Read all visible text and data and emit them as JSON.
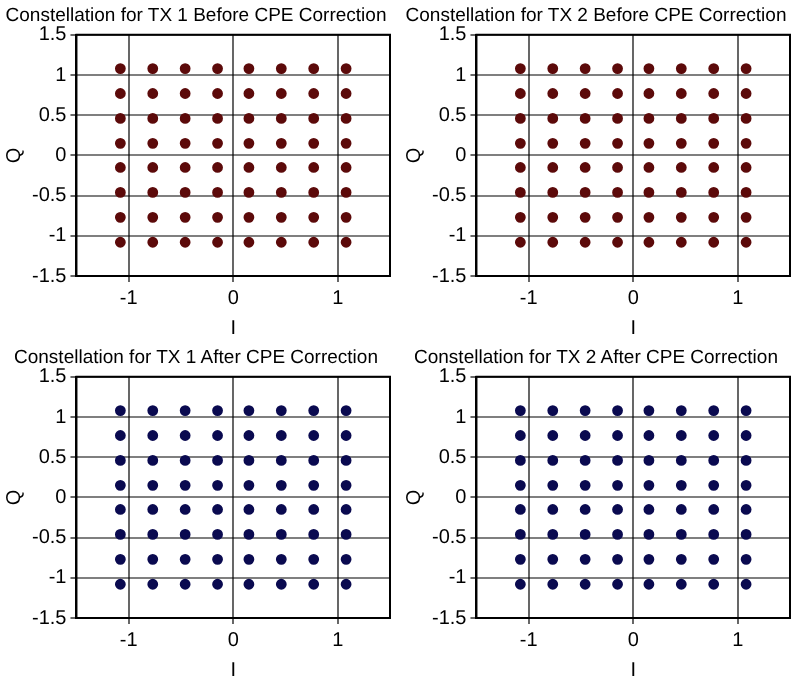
{
  "chart_data": [
    {
      "type": "scatter",
      "title": "Constellation for TX 1 Before CPE Correction",
      "xlabel": "I",
      "ylabel": "Q",
      "xlim": [
        -1.5,
        1.5
      ],
      "xticks": [
        -1,
        0,
        1
      ],
      "ylim": [
        -1.5,
        1.5
      ],
      "yticks": [
        -1.5,
        -1,
        -0.5,
        0,
        0.5,
        1,
        1.5
      ],
      "grid": true,
      "marker": "circle",
      "series": [
        {
          "color": "#5c0a0a",
          "x": [
            -1.08,
            -1.08,
            -1.08,
            -1.08,
            -1.08,
            -1.08,
            -1.08,
            -1.08,
            -0.77,
            -0.77,
            -0.77,
            -0.77,
            -0.77,
            -0.77,
            -0.77,
            -0.77,
            -0.46,
            -0.46,
            -0.46,
            -0.46,
            -0.46,
            -0.46,
            -0.46,
            -0.46,
            -0.15,
            -0.15,
            -0.15,
            -0.15,
            -0.15,
            -0.15,
            -0.15,
            -0.15,
            0.15,
            0.15,
            0.15,
            0.15,
            0.15,
            0.15,
            0.15,
            0.15,
            0.46,
            0.46,
            0.46,
            0.46,
            0.46,
            0.46,
            0.46,
            0.46,
            0.77,
            0.77,
            0.77,
            0.77,
            0.77,
            0.77,
            0.77,
            0.77,
            1.08,
            1.08,
            1.08,
            1.08,
            1.08,
            1.08,
            1.08,
            1.08
          ],
          "values": [
            -1.08,
            -0.77,
            -0.46,
            -0.15,
            0.15,
            0.46,
            0.77,
            1.08,
            -1.08,
            -0.77,
            -0.46,
            -0.15,
            0.15,
            0.46,
            0.77,
            1.08,
            -1.08,
            -0.77,
            -0.46,
            -0.15,
            0.15,
            0.46,
            0.77,
            1.08,
            -1.08,
            -0.77,
            -0.46,
            -0.15,
            0.15,
            0.46,
            0.77,
            1.08,
            -1.08,
            -0.77,
            -0.46,
            -0.15,
            0.15,
            0.46,
            0.77,
            1.08,
            -1.08,
            -0.77,
            -0.46,
            -0.15,
            0.15,
            0.46,
            0.77,
            1.08,
            -1.08,
            -0.77,
            -0.46,
            -0.15,
            0.15,
            0.46,
            0.77,
            1.08,
            -1.08,
            -0.77,
            -0.46,
            -0.15,
            0.15,
            0.46,
            0.77,
            1.08
          ]
        }
      ]
    },
    {
      "type": "scatter",
      "title": "Constellation for TX 2 Before CPE Correction",
      "xlabel": "I",
      "ylabel": "Q",
      "xlim": [
        -1.5,
        1.5
      ],
      "xticks": [
        -1,
        0,
        1
      ],
      "ylim": [
        -1.5,
        1.5
      ],
      "yticks": [
        -1.5,
        -1,
        -0.5,
        0,
        0.5,
        1,
        1.5
      ],
      "grid": true,
      "marker": "circle",
      "series": [
        {
          "color": "#5c0a0a",
          "x": [
            -1.08,
            -1.08,
            -1.08,
            -1.08,
            -1.08,
            -1.08,
            -1.08,
            -1.08,
            -0.77,
            -0.77,
            -0.77,
            -0.77,
            -0.77,
            -0.77,
            -0.77,
            -0.77,
            -0.46,
            -0.46,
            -0.46,
            -0.46,
            -0.46,
            -0.46,
            -0.46,
            -0.46,
            -0.15,
            -0.15,
            -0.15,
            -0.15,
            -0.15,
            -0.15,
            -0.15,
            -0.15,
            0.15,
            0.15,
            0.15,
            0.15,
            0.15,
            0.15,
            0.15,
            0.15,
            0.46,
            0.46,
            0.46,
            0.46,
            0.46,
            0.46,
            0.46,
            0.46,
            0.77,
            0.77,
            0.77,
            0.77,
            0.77,
            0.77,
            0.77,
            0.77,
            1.08,
            1.08,
            1.08,
            1.08,
            1.08,
            1.08,
            1.08,
            1.08
          ],
          "values": [
            -1.08,
            -0.77,
            -0.46,
            -0.15,
            0.15,
            0.46,
            0.77,
            1.08,
            -1.08,
            -0.77,
            -0.46,
            -0.15,
            0.15,
            0.46,
            0.77,
            1.08,
            -1.08,
            -0.77,
            -0.46,
            -0.15,
            0.15,
            0.46,
            0.77,
            1.08,
            -1.08,
            -0.77,
            -0.46,
            -0.15,
            0.15,
            0.46,
            0.77,
            1.08,
            -1.08,
            -0.77,
            -0.46,
            -0.15,
            0.15,
            0.46,
            0.77,
            1.08,
            -1.08,
            -0.77,
            -0.46,
            -0.15,
            0.15,
            0.46,
            0.77,
            1.08,
            -1.08,
            -0.77,
            -0.46,
            -0.15,
            0.15,
            0.46,
            0.77,
            1.08,
            -1.08,
            -0.77,
            -0.46,
            -0.15,
            0.15,
            0.46,
            0.77,
            1.08
          ]
        }
      ]
    },
    {
      "type": "scatter",
      "title": "Constellation for TX 1 After CPE Correction",
      "xlabel": "I",
      "ylabel": "Q",
      "xlim": [
        -1.5,
        1.5
      ],
      "xticks": [
        -1,
        0,
        1
      ],
      "ylim": [
        -1.5,
        1.5
      ],
      "yticks": [
        -1.5,
        -1,
        -0.5,
        0,
        0.5,
        1,
        1.5
      ],
      "grid": true,
      "marker": "circle",
      "series": [
        {
          "color": "#0a0a50",
          "x": [
            -1.08,
            -1.08,
            -1.08,
            -1.08,
            -1.08,
            -1.08,
            -1.08,
            -1.08,
            -0.77,
            -0.77,
            -0.77,
            -0.77,
            -0.77,
            -0.77,
            -0.77,
            -0.77,
            -0.46,
            -0.46,
            -0.46,
            -0.46,
            -0.46,
            -0.46,
            -0.46,
            -0.46,
            -0.15,
            -0.15,
            -0.15,
            -0.15,
            -0.15,
            -0.15,
            -0.15,
            -0.15,
            0.15,
            0.15,
            0.15,
            0.15,
            0.15,
            0.15,
            0.15,
            0.15,
            0.46,
            0.46,
            0.46,
            0.46,
            0.46,
            0.46,
            0.46,
            0.46,
            0.77,
            0.77,
            0.77,
            0.77,
            0.77,
            0.77,
            0.77,
            0.77,
            1.08,
            1.08,
            1.08,
            1.08,
            1.08,
            1.08,
            1.08,
            1.08
          ],
          "values": [
            -1.08,
            -0.77,
            -0.46,
            -0.15,
            0.15,
            0.46,
            0.77,
            1.08,
            -1.08,
            -0.77,
            -0.46,
            -0.15,
            0.15,
            0.46,
            0.77,
            1.08,
            -1.08,
            -0.77,
            -0.46,
            -0.15,
            0.15,
            0.46,
            0.77,
            1.08,
            -1.08,
            -0.77,
            -0.46,
            -0.15,
            0.15,
            0.46,
            0.77,
            1.08,
            -1.08,
            -0.77,
            -0.46,
            -0.15,
            0.15,
            0.46,
            0.77,
            1.08,
            -1.08,
            -0.77,
            -0.46,
            -0.15,
            0.15,
            0.46,
            0.77,
            1.08,
            -1.08,
            -0.77,
            -0.46,
            -0.15,
            0.15,
            0.46,
            0.77,
            1.08,
            -1.08,
            -0.77,
            -0.46,
            -0.15,
            0.15,
            0.46,
            0.77,
            1.08
          ]
        }
      ]
    },
    {
      "type": "scatter",
      "title": "Constellation for TX 2 After CPE Correction",
      "xlabel": "I",
      "ylabel": "Q",
      "xlim": [
        -1.5,
        1.5
      ],
      "xticks": [
        -1,
        0,
        1
      ],
      "ylim": [
        -1.5,
        1.5
      ],
      "yticks": [
        -1.5,
        -1,
        -0.5,
        0,
        0.5,
        1,
        1.5
      ],
      "grid": true,
      "marker": "circle",
      "series": [
        {
          "color": "#0a0a50",
          "x": [
            -1.08,
            -1.08,
            -1.08,
            -1.08,
            -1.08,
            -1.08,
            -1.08,
            -1.08,
            -0.77,
            -0.77,
            -0.77,
            -0.77,
            -0.77,
            -0.77,
            -0.77,
            -0.77,
            -0.46,
            -0.46,
            -0.46,
            -0.46,
            -0.46,
            -0.46,
            -0.46,
            -0.46,
            -0.15,
            -0.15,
            -0.15,
            -0.15,
            -0.15,
            -0.15,
            -0.15,
            -0.15,
            0.15,
            0.15,
            0.15,
            0.15,
            0.15,
            0.15,
            0.15,
            0.15,
            0.46,
            0.46,
            0.46,
            0.46,
            0.46,
            0.46,
            0.46,
            0.46,
            0.77,
            0.77,
            0.77,
            0.77,
            0.77,
            0.77,
            0.77,
            0.77,
            1.08,
            1.08,
            1.08,
            1.08,
            1.08,
            1.08,
            1.08,
            1.08
          ],
          "values": [
            -1.08,
            -0.77,
            -0.46,
            -0.15,
            0.15,
            0.46,
            0.77,
            1.08,
            -1.08,
            -0.77,
            -0.46,
            -0.15,
            0.15,
            0.46,
            0.77,
            1.08,
            -1.08,
            -0.77,
            -0.46,
            -0.15,
            0.15,
            0.46,
            0.77,
            1.08,
            -1.08,
            -0.77,
            -0.46,
            -0.15,
            0.15,
            0.46,
            0.77,
            1.08,
            -1.08,
            -0.77,
            -0.46,
            -0.15,
            0.15,
            0.46,
            0.77,
            1.08,
            -1.08,
            -0.77,
            -0.46,
            -0.15,
            0.15,
            0.46,
            0.77,
            1.08,
            -1.08,
            -0.77,
            -0.46,
            -0.15,
            0.15,
            0.46,
            0.77,
            1.08,
            -1.08,
            -0.77,
            -0.46,
            -0.15,
            0.15,
            0.46,
            0.77,
            1.08
          ]
        }
      ]
    }
  ]
}
